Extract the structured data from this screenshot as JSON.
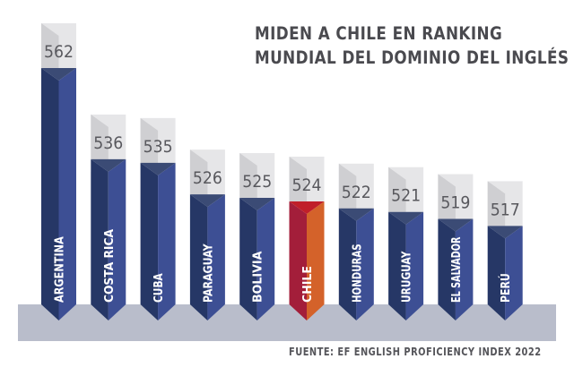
{
  "chart_data": {
    "type": "bar",
    "title": "MIDEN A CHILE EN RANKING MUNDIAL DEL DOMINIO DEL INGLÉS",
    "title_lines": [
      "MIDEN A CHILE EN RANKING",
      "MUNDIAL DEL DOMINIO DEL INGLÉS"
    ],
    "source": "FUENTE: EF ENGLISH PROFICIENCY INDEX 2022",
    "xlabel": "",
    "ylabel": "",
    "categories": [
      "ARGENTINA",
      "COSTA RICA",
      "CUBA",
      "PARAGUAY",
      "BOLIVIA",
      "CHILE",
      "HONDURAS",
      "URUGUAY",
      "EL SALVADOR",
      "PERÚ"
    ],
    "values": [
      562,
      536,
      535,
      526,
      525,
      524,
      522,
      521,
      519,
      517
    ],
    "highlight": "CHILE",
    "grid": false,
    "legend": "none",
    "colors": {
      "bar_light": "#3d4f94",
      "bar_dark": "#263766",
      "highlight_light": "#d4622a",
      "highlight_dark": "#a31e3a",
      "highlight_top": "#c01f2a",
      "cap_light": "#e6e6e8",
      "cap_dark": "#cfcfd2",
      "base": "#b9bdcb",
      "text": "#4a4a4f"
    }
  }
}
